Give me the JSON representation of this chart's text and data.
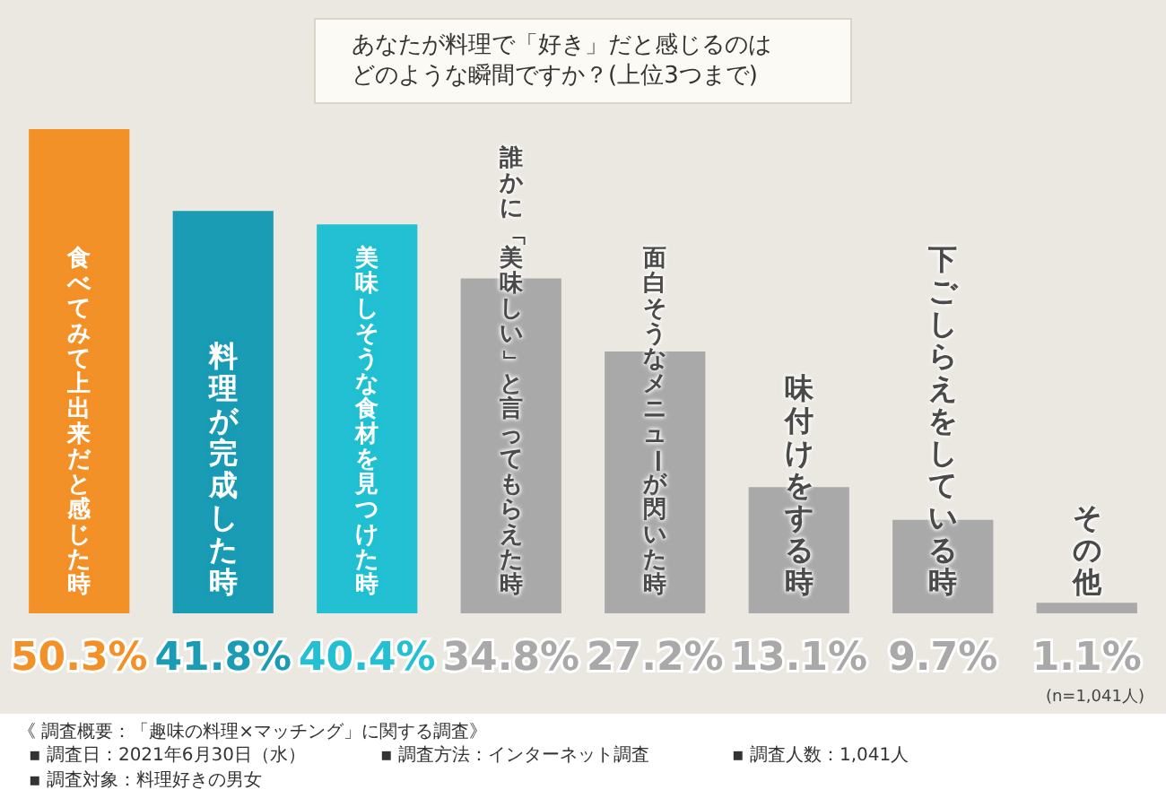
{
  "chart_data": {
    "type": "bar",
    "title": "あなたが料理で「好き」だと感じるのはどのような瞬間ですか？(上位3つまで)",
    "categories": [
      "食べてみて上出来だと感じた時",
      "料理が完成した時",
      "美味しそうな食材を見つけた時",
      "誰かに「美味しい」と言ってもらえた時",
      "面白そうなメニューが閃いた時",
      "味付けをする時",
      "下ごしらえをしている時",
      "その他"
    ],
    "values": [
      50.3,
      41.8,
      40.4,
      34.8,
      27.2,
      13.1,
      9.7,
      1.1
    ],
    "colors": [
      "#f39129",
      "#1b9cb5",
      "#22c0d2",
      "#a9a9a9",
      "#a9a9a9",
      "#a9a9a9",
      "#a9a9a9",
      "#a9a9a9"
    ],
    "value_labels": [
      "50.3%",
      "41.8%",
      "40.4%",
      "34.8%",
      "27.2%",
      "13.1%",
      "9.7%",
      "1.1%"
    ],
    "legend": false,
    "annotations": [
      "(n=1,041人)",
      "《 調査概要：「趣味の料理×マッチング」に関する調査》",
      "▪ 調査日：2021年6月30日（水）",
      "▪ 調査方法：インターネット調査",
      "▪ 調査人数：1,041人",
      "▪ 調査対象：料理好きの男女"
    ]
  }
}
